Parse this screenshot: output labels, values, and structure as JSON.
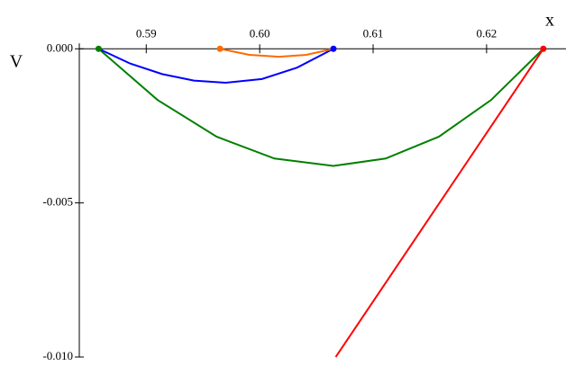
{
  "chart_data": {
    "type": "line",
    "x_label": "x",
    "y_label": "V",
    "xlim": [
      0.5841,
      0.627
    ],
    "ylim": [
      -0.01,
      0.001
    ],
    "xticks": [
      0.59,
      {
        "value": 0.6,
        "label": "0.60"
      },
      0.61,
      0.62
    ],
    "yticks": [
      {
        "value": 0,
        "label": "0.000"
      },
      {
        "value": -0.005,
        "label": "-0.005"
      },
      {
        "value": -0.01,
        "label": "-0.010"
      }
    ],
    "series": [
      {
        "color": "#008000",
        "x": [
          0.5858,
          0.591,
          0.5962,
          0.6013,
          0.6065,
          0.6111,
          0.6158,
          0.6204,
          0.625
        ],
        "values": [
          0,
          -0.00166,
          -0.00285,
          -0.00356,
          -0.0038,
          -0.00356,
          -0.00285,
          -0.00166,
          0
        ]
      },
      {
        "color": "#0000ff",
        "x": [
          0.5858,
          0.5886,
          0.5914,
          0.5942,
          0.597,
          0.6002,
          0.6033,
          0.6065
        ],
        "values": [
          0,
          -0.00048,
          -0.00082,
          -0.00103,
          -0.0011,
          -0.00098,
          -0.00061,
          0
        ]
      },
      {
        "color": "#ff6a00",
        "x": [
          0.5965,
          0.5991,
          0.6017,
          0.6041,
          0.6065
        ],
        "values": [
          0,
          -0.000195,
          -0.00026,
          -0.000195,
          0
        ]
      },
      {
        "color": "#ff0000",
        "x": [
          0.6067,
          0.625
        ],
        "values": [
          -0.01,
          0
        ]
      }
    ],
    "dots": {
      "x": [
        0.5858,
        0.5965,
        0.6065,
        0.625
      ],
      "values": [
        0,
        0,
        0,
        0
      ],
      "colors": [
        "#008000",
        "#ff6a00",
        "#0000ff",
        "#ff0000"
      ]
    }
  }
}
